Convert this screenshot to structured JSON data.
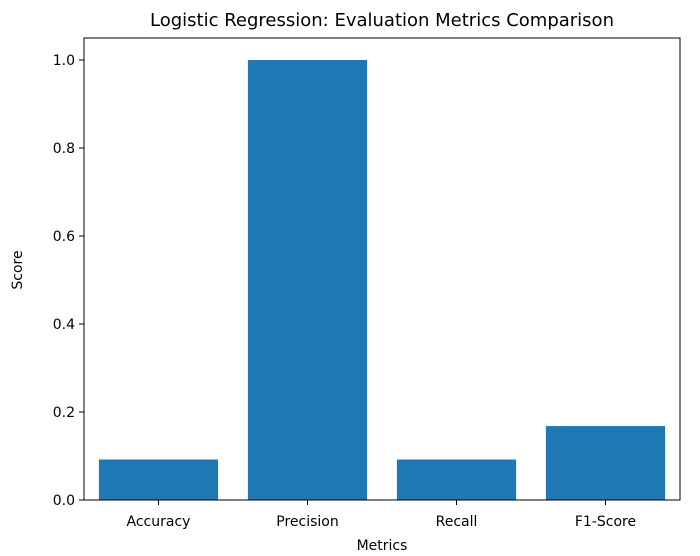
{
  "chart_data": {
    "type": "bar",
    "title": "Logistic Regression: Evaluation Metrics Comparison",
    "xlabel": "Metrics",
    "ylabel": "Score",
    "categories": [
      "Accuracy",
      "Precision",
      "Recall",
      "F1-Score"
    ],
    "values": [
      0.092,
      1.0,
      0.092,
      0.168
    ],
    "ylim": [
      0,
      1.05
    ],
    "yticks": [
      0.0,
      0.2,
      0.4,
      0.6,
      0.8,
      1.0
    ],
    "ytick_labels": [
      "0.0",
      "0.2",
      "0.4",
      "0.6",
      "0.8",
      "1.0"
    ],
    "grid": false,
    "bar_color": "#1f77b4"
  }
}
